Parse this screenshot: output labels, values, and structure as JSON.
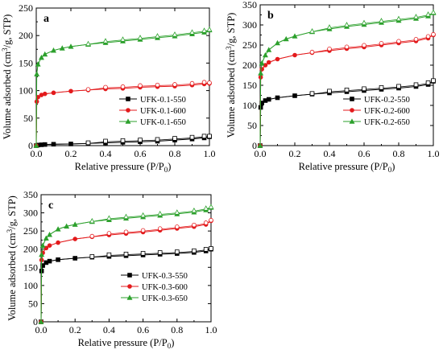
{
  "chart_data": [
    {
      "type": "line",
      "panel_label": "a",
      "xlabel": "Relative pressure (P/P",
      "xlabel_sub": "0",
      "xlabel_end": ")",
      "ylabel_parts": [
        "Volume adsorbed (cm",
        "3",
        "/g, STP)"
      ],
      "xlim": [
        0,
        1.0
      ],
      "ylim": [
        0,
        250
      ],
      "xticks": [
        "0.0",
        "0.2",
        "0.4",
        "0.6",
        "0.8",
        "1.0"
      ],
      "xtick_values": [
        0,
        0.2,
        0.4,
        0.6,
        0.8,
        1.0
      ],
      "yticks": [
        "0",
        "50",
        "100",
        "150",
        "200",
        "250"
      ],
      "ytick_values": [
        0,
        50,
        100,
        150,
        200,
        250
      ],
      "legend_position": "lower-right",
      "series": [
        {
          "name": "UFK-0.1-550",
          "color": "#000000",
          "marker": "square",
          "x": [
            0.0,
            0.01,
            0.03,
            0.05,
            0.1,
            0.2,
            0.3,
            0.4,
            0.5,
            0.6,
            0.7,
            0.8,
            0.9,
            0.97,
            1.0
          ],
          "y": [
            0,
            1,
            1.5,
            2,
            2.5,
            3,
            4,
            5,
            6,
            7,
            8,
            10,
            12,
            14,
            16
          ]
        },
        {
          "name": "UFK-0.1-600",
          "color": "#e31a1c",
          "marker": "circle",
          "x": [
            0.0,
            0.003,
            0.01,
            0.03,
            0.05,
            0.1,
            0.2,
            0.3,
            0.4,
            0.5,
            0.6,
            0.7,
            0.8,
            0.9,
            0.97,
            1.0
          ],
          "y": [
            0,
            80,
            88,
            92,
            94,
            96,
            99,
            101,
            103,
            104,
            106,
            107,
            108,
            110,
            112,
            113
          ]
        },
        {
          "name": "UFK-0.1-650",
          "color": "#2ca02c",
          "marker": "triangle",
          "x": [
            0.0,
            0.003,
            0.01,
            0.03,
            0.05,
            0.1,
            0.15,
            0.2,
            0.3,
            0.4,
            0.5,
            0.6,
            0.7,
            0.8,
            0.9,
            0.97,
            1.0
          ],
          "y": [
            0,
            130,
            148,
            160,
            166,
            173,
            177,
            180,
            184,
            187,
            190,
            193,
            196,
            199,
            203,
            206,
            210
          ]
        }
      ]
    },
    {
      "type": "line",
      "panel_label": "b",
      "xlabel": "Relative pressure (P/P",
      "xlabel_sub": "0",
      "xlabel_end": ")",
      "ylabel_parts": [
        "Volume adsorbed (cm",
        "3",
        "/g, STP)"
      ],
      "xlim": [
        0,
        1.0
      ],
      "ylim": [
        0,
        350
      ],
      "xticks": [
        "0.0",
        "0.2",
        "0.4",
        "0.6",
        "0.8",
        "1.0"
      ],
      "xtick_values": [
        0,
        0.2,
        0.4,
        0.6,
        0.8,
        1.0
      ],
      "yticks": [
        "0",
        "50",
        "100",
        "150",
        "200",
        "250",
        "300",
        "350"
      ],
      "ytick_values": [
        0,
        50,
        100,
        150,
        200,
        250,
        300,
        350
      ],
      "legend_position": "lower-right",
      "series": [
        {
          "name": "UFK-0.2-550",
          "color": "#000000",
          "marker": "square",
          "x": [
            0.0,
            0.003,
            0.01,
            0.03,
            0.05,
            0.1,
            0.2,
            0.3,
            0.4,
            0.5,
            0.6,
            0.7,
            0.8,
            0.9,
            0.97,
            1.0
          ],
          "y": [
            0,
            95,
            106,
            112,
            115,
            119,
            124,
            128,
            131,
            134,
            137,
            140,
            143,
            147,
            152,
            160
          ]
        },
        {
          "name": "UFK-0.2-600",
          "color": "#e31a1c",
          "marker": "circle",
          "x": [
            0.0,
            0.003,
            0.01,
            0.03,
            0.05,
            0.1,
            0.2,
            0.3,
            0.4,
            0.5,
            0.6,
            0.7,
            0.8,
            0.9,
            0.97,
            1.0
          ],
          "y": [
            0,
            170,
            190,
            200,
            207,
            215,
            225,
            231,
            236,
            241,
            245,
            250,
            255,
            260,
            267,
            275
          ]
        },
        {
          "name": "UFK-0.2-650",
          "color": "#2ca02c",
          "marker": "triangle",
          "x": [
            0.0,
            0.003,
            0.01,
            0.03,
            0.05,
            0.1,
            0.15,
            0.2,
            0.3,
            0.4,
            0.5,
            0.6,
            0.7,
            0.8,
            0.9,
            0.97,
            1.0
          ],
          "y": [
            0,
            180,
            205,
            225,
            238,
            255,
            265,
            272,
            283,
            290,
            296,
            301,
            306,
            311,
            316,
            322,
            330
          ]
        }
      ]
    },
    {
      "type": "line",
      "panel_label": "c",
      "xlabel": "Relative pressure (P/P",
      "xlabel_sub": "0",
      "xlabel_end": ")",
      "ylabel_parts": [
        "Volume adsorbed (cm",
        "3",
        "/g, STP)"
      ],
      "xlim": [
        0,
        1.0
      ],
      "ylim": [
        0,
        350
      ],
      "xticks": [
        "0.0",
        "0.2",
        "0.4",
        "0.6",
        "0.8",
        "1.0"
      ],
      "xtick_values": [
        0,
        0.2,
        0.4,
        0.6,
        0.8,
        1.0
      ],
      "yticks": [
        "0",
        "50",
        "100",
        "150",
        "200",
        "250",
        "300",
        "350"
      ],
      "ytick_values": [
        0,
        50,
        100,
        150,
        200,
        250,
        300,
        350
      ],
      "legend_position": "lower-right",
      "series": [
        {
          "name": "UFK-0.3-550",
          "color": "#000000",
          "marker": "square",
          "x": [
            0.0,
            0.003,
            0.01,
            0.03,
            0.05,
            0.1,
            0.2,
            0.3,
            0.4,
            0.5,
            0.6,
            0.7,
            0.8,
            0.9,
            0.97,
            1.0
          ],
          "y": [
            0,
            140,
            155,
            163,
            167,
            171,
            175,
            178,
            180,
            182,
            184,
            186,
            188,
            191,
            195,
            200
          ]
        },
        {
          "name": "UFK-0.3-600",
          "color": "#e31a1c",
          "marker": "circle",
          "x": [
            0.0,
            0.003,
            0.01,
            0.03,
            0.05,
            0.1,
            0.2,
            0.3,
            0.4,
            0.5,
            0.6,
            0.7,
            0.8,
            0.9,
            0.97,
            1.0
          ],
          "y": [
            0,
            170,
            190,
            203,
            210,
            218,
            228,
            234,
            239,
            243,
            247,
            252,
            257,
            262,
            268,
            278
          ]
        },
        {
          "name": "UFK-0.3-650",
          "color": "#2ca02c",
          "marker": "triangle",
          "x": [
            0.0,
            0.003,
            0.01,
            0.03,
            0.05,
            0.1,
            0.15,
            0.2,
            0.3,
            0.4,
            0.5,
            0.6,
            0.7,
            0.8,
            0.9,
            0.97,
            1.0
          ],
          "y": [
            0,
            185,
            210,
            230,
            240,
            255,
            263,
            268,
            276,
            281,
            285,
            289,
            293,
            297,
            302,
            308,
            315
          ]
        }
      ]
    }
  ]
}
